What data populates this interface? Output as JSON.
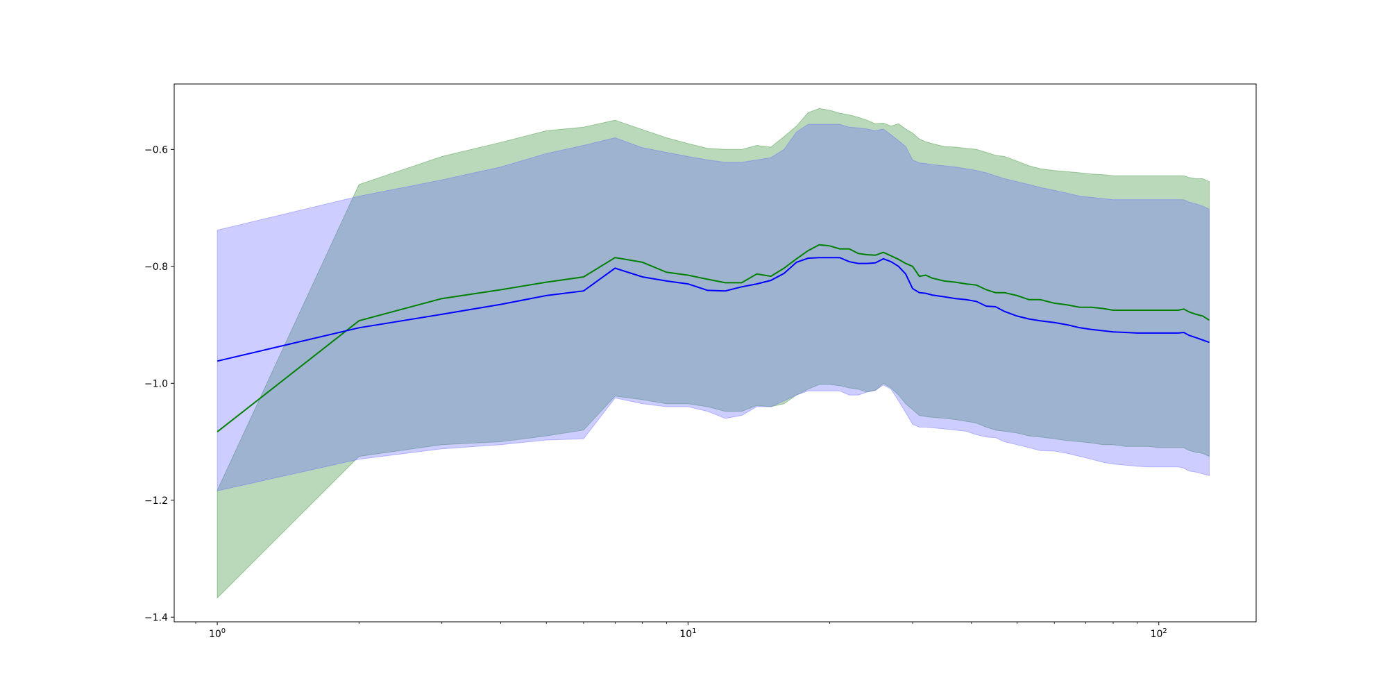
{
  "chart_data": {
    "type": "line",
    "title": "",
    "xlabel": "",
    "ylabel": "",
    "xscale": "log",
    "xlim": [
      0.81,
      161
    ],
    "ylim": [
      -1.408,
      -0.488
    ],
    "grid": false,
    "legend": "none",
    "x_ticks": [
      {
        "value": 1,
        "base": "10",
        "exp": "0"
      },
      {
        "value": 10,
        "base": "10",
        "exp": "1"
      },
      {
        "value": 100,
        "base": "10",
        "exp": "2"
      }
    ],
    "y_ticks": [
      {
        "value": -0.6,
        "label": "−0.6"
      },
      {
        "value": -0.8,
        "label": "−0.8"
      },
      {
        "value": -1.0,
        "label": "−1.0"
      },
      {
        "value": -1.2,
        "label": "−1.2"
      },
      {
        "value": -1.4,
        "label": "−1.4"
      }
    ],
    "series": [
      {
        "color": "#008000",
        "band_color": "#2e8b2e",
        "x": [
          1,
          2,
          3,
          4,
          5,
          6,
          7,
          8,
          9,
          10,
          11,
          12,
          13,
          14,
          15,
          16,
          17,
          18,
          19,
          20,
          21,
          22,
          23,
          24,
          25,
          26,
          27,
          28,
          29,
          30,
          31,
          32,
          33,
          35,
          37,
          39,
          41,
          43,
          45,
          47,
          50,
          53,
          56,
          60,
          64,
          68,
          72,
          76,
          80,
          85,
          90,
          95,
          100,
          105,
          110,
          113,
          116,
          120,
          124,
          128
        ],
        "mean": [
          -1.083,
          -0.893,
          -0.855,
          -0.84,
          -0.827,
          -0.818,
          -0.785,
          -0.793,
          -0.81,
          -0.815,
          -0.822,
          -0.828,
          -0.828,
          -0.813,
          -0.817,
          -0.803,
          -0.787,
          -0.773,
          -0.763,
          -0.765,
          -0.77,
          -0.77,
          -0.778,
          -0.78,
          -0.781,
          -0.776,
          -0.782,
          -0.788,
          -0.795,
          -0.8,
          -0.817,
          -0.815,
          -0.82,
          -0.825,
          -0.827,
          -0.83,
          -0.832,
          -0.84,
          -0.845,
          -0.845,
          -0.85,
          -0.857,
          -0.857,
          -0.863,
          -0.866,
          -0.87,
          -0.87,
          -0.872,
          -0.875,
          -0.875,
          -0.875,
          -0.875,
          -0.875,
          -0.875,
          -0.875,
          -0.873,
          -0.878,
          -0.882,
          -0.885,
          -0.892
        ],
        "lower": [
          -1.367,
          -1.125,
          -1.105,
          -1.1,
          -1.09,
          -1.08,
          -1.022,
          -1.028,
          -1.035,
          -1.035,
          -1.04,
          -1.048,
          -1.048,
          -1.038,
          -1.04,
          -1.035,
          -1.02,
          -1.01,
          -1.002,
          -1.002,
          -1.004,
          -1.008,
          -1.01,
          -1.015,
          -1.012,
          -1.0,
          -1.008,
          -1.02,
          -1.035,
          -1.045,
          -1.055,
          -1.057,
          -1.058,
          -1.06,
          -1.062,
          -1.065,
          -1.068,
          -1.075,
          -1.08,
          -1.082,
          -1.085,
          -1.09,
          -1.092,
          -1.095,
          -1.098,
          -1.1,
          -1.102,
          -1.105,
          -1.105,
          -1.108,
          -1.108,
          -1.108,
          -1.11,
          -1.11,
          -1.11,
          -1.11,
          -1.115,
          -1.118,
          -1.12,
          -1.125
        ],
        "upper": [
          -1.183,
          -0.66,
          -0.612,
          -0.588,
          -0.568,
          -0.562,
          -0.55,
          -0.566,
          -0.58,
          -0.59,
          -0.598,
          -0.6,
          -0.6,
          -0.593,
          -0.596,
          -0.578,
          -0.56,
          -0.537,
          -0.53,
          -0.533,
          -0.538,
          -0.541,
          -0.545,
          -0.55,
          -0.556,
          -0.555,
          -0.56,
          -0.556,
          -0.565,
          -0.572,
          -0.582,
          -0.587,
          -0.59,
          -0.595,
          -0.596,
          -0.598,
          -0.6,
          -0.605,
          -0.61,
          -0.612,
          -0.62,
          -0.628,
          -0.633,
          -0.636,
          -0.638,
          -0.64,
          -0.642,
          -0.643,
          -0.645,
          -0.645,
          -0.645,
          -0.645,
          -0.645,
          -0.645,
          -0.645,
          -0.645,
          -0.648,
          -0.65,
          -0.65,
          -0.655
        ]
      },
      {
        "color": "#0000ff",
        "band_color": "#6666ff",
        "x": [
          1,
          2,
          3,
          4,
          5,
          6,
          7,
          8,
          9,
          10,
          11,
          12,
          13,
          14,
          15,
          16,
          17,
          18,
          19,
          20,
          21,
          22,
          23,
          24,
          25,
          26,
          27,
          28,
          29,
          30,
          31,
          32,
          33,
          35,
          37,
          39,
          41,
          43,
          45,
          47,
          50,
          53,
          56,
          60,
          64,
          68,
          72,
          76,
          80,
          85,
          90,
          95,
          100,
          105,
          110,
          113,
          116,
          120,
          124,
          128
        ],
        "mean": [
          -0.962,
          -0.905,
          -0.882,
          -0.865,
          -0.85,
          -0.842,
          -0.803,
          -0.818,
          -0.825,
          -0.83,
          -0.841,
          -0.842,
          -0.835,
          -0.83,
          -0.824,
          -0.812,
          -0.793,
          -0.786,
          -0.785,
          -0.785,
          -0.785,
          -0.792,
          -0.795,
          -0.795,
          -0.794,
          -0.787,
          -0.792,
          -0.8,
          -0.813,
          -0.838,
          -0.845,
          -0.846,
          -0.849,
          -0.852,
          -0.855,
          -0.857,
          -0.86,
          -0.868,
          -0.869,
          -0.877,
          -0.885,
          -0.89,
          -0.893,
          -0.896,
          -0.9,
          -0.905,
          -0.908,
          -0.91,
          -0.912,
          -0.913,
          -0.914,
          -0.914,
          -0.914,
          -0.914,
          -0.914,
          -0.913,
          -0.918,
          -0.922,
          -0.926,
          -0.93
        ],
        "lower": [
          -1.184,
          -1.13,
          -1.112,
          -1.105,
          -1.097,
          -1.095,
          -1.025,
          -1.035,
          -1.04,
          -1.04,
          -1.048,
          -1.06,
          -1.055,
          -1.04,
          -1.04,
          -1.03,
          -1.02,
          -1.013,
          -1.013,
          -1.013,
          -1.013,
          -1.02,
          -1.02,
          -1.015,
          -1.012,
          -1.003,
          -1.01,
          -1.03,
          -1.05,
          -1.07,
          -1.075,
          -1.075,
          -1.076,
          -1.078,
          -1.08,
          -1.082,
          -1.088,
          -1.092,
          -1.093,
          -1.1,
          -1.105,
          -1.11,
          -1.115,
          -1.116,
          -1.12,
          -1.125,
          -1.13,
          -1.135,
          -1.138,
          -1.14,
          -1.142,
          -1.143,
          -1.143,
          -1.143,
          -1.143,
          -1.145,
          -1.15,
          -1.152,
          -1.155,
          -1.158
        ],
        "upper": [
          -0.738,
          -0.68,
          -0.652,
          -0.63,
          -0.607,
          -0.593,
          -0.58,
          -0.597,
          -0.605,
          -0.612,
          -0.618,
          -0.622,
          -0.622,
          -0.618,
          -0.614,
          -0.6,
          -0.57,
          -0.557,
          -0.557,
          -0.557,
          -0.557,
          -0.562,
          -0.563,
          -0.565,
          -0.568,
          -0.565,
          -0.575,
          -0.585,
          -0.595,
          -0.618,
          -0.623,
          -0.624,
          -0.626,
          -0.628,
          -0.63,
          -0.633,
          -0.636,
          -0.64,
          -0.645,
          -0.65,
          -0.655,
          -0.66,
          -0.665,
          -0.67,
          -0.675,
          -0.68,
          -0.682,
          -0.684,
          -0.686,
          -0.686,
          -0.686,
          -0.686,
          -0.686,
          -0.686,
          -0.686,
          -0.686,
          -0.69,
          -0.693,
          -0.697,
          -0.702
        ]
      }
    ]
  }
}
